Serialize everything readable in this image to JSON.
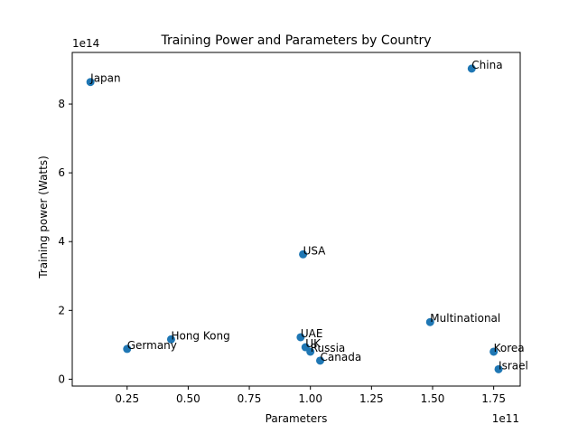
{
  "chart_data": {
    "type": "scatter",
    "title": "Training Power and Parameters by Country",
    "xlabel": "Parameters",
    "ylabel": "Training power (Watts)",
    "x_offset_label": "1e11",
    "y_offset_label": "1e14",
    "x_scale": 100000000000.0,
    "y_scale": 100000000000000.0,
    "xlim": [
      0.0255,
      1.8585
    ],
    "ylim": [
      -0.2,
      9.5
    ],
    "xticks": [
      0.25,
      0.5,
      0.75,
      1.0,
      1.25,
      1.5,
      1.75
    ],
    "xtick_labels": [
      "0.25",
      "0.50",
      "0.75",
      "1.00",
      "1.25",
      "1.50",
      "1.75"
    ],
    "yticks": [
      0,
      2,
      4,
      6,
      8
    ],
    "ytick_labels": [
      "0",
      "2",
      "4",
      "6",
      "8"
    ],
    "grid": false,
    "marker_color": "#1f77b4",
    "points": [
      {
        "label": "China",
        "x": 1.66,
        "y": 9.03
      },
      {
        "label": "Japan",
        "x": 0.1,
        "y": 8.64
      },
      {
        "label": "USA",
        "x": 0.97,
        "y": 3.63
      },
      {
        "label": "Multinational",
        "x": 1.49,
        "y": 1.66
      },
      {
        "label": "UAE",
        "x": 0.96,
        "y": 1.22
      },
      {
        "label": "Hong Kong",
        "x": 0.43,
        "y": 1.16
      },
      {
        "label": "UK",
        "x": 0.98,
        "y": 0.93
      },
      {
        "label": "Germany",
        "x": 0.25,
        "y": 0.88
      },
      {
        "label": "Russia",
        "x": 1.0,
        "y": 0.8
      },
      {
        "label": "Korea",
        "x": 1.75,
        "y": 0.8
      },
      {
        "label": "Canada",
        "x": 1.04,
        "y": 0.54
      },
      {
        "label": "Israel",
        "x": 1.77,
        "y": 0.29
      }
    ]
  }
}
